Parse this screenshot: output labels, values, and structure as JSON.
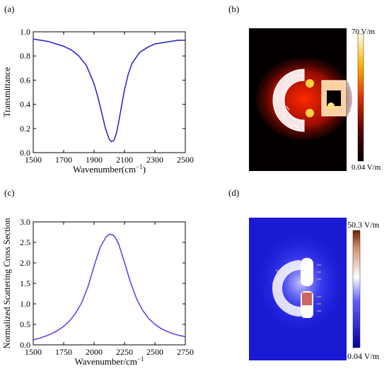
{
  "panels": {
    "a": {
      "label": "(a)"
    },
    "b": {
      "label": "(b)",
      "colorbar_max": "70 V/m",
      "colorbar_min": "0.04 V/m"
    },
    "c": {
      "label": "(c)"
    },
    "d": {
      "label": "(d)",
      "colorbar_max": "50.3 V/m",
      "colorbar_min": "0.04 V/m"
    }
  },
  "chart_data": [
    {
      "id": "a",
      "type": "line",
      "xlabel": "Wavenumber(cm",
      "xlabel_sup": "−1",
      "xlabel_end": ")",
      "ylabel": "Transmittance",
      "xlim": [
        1500,
        2500
      ],
      "ylim": [
        0.0,
        1.0
      ],
      "xticks": [
        1500,
        1700,
        1900,
        2100,
        2300,
        2500
      ],
      "xtick_labels": [
        "1500",
        "1700",
        "1900",
        "2100",
        "2300",
        "2500"
      ],
      "yticks": [
        0.0,
        0.2,
        0.4,
        0.6,
        0.8,
        1.0
      ],
      "ytick_labels": [
        "0.0",
        "0.2",
        "0.4",
        "0.6",
        "0.8",
        "1.0"
      ],
      "color": "#1f1fcc",
      "series": [
        {
          "x": [
            1500,
            1550,
            1600,
            1650,
            1700,
            1750,
            1800,
            1850,
            1900,
            1925,
            1950,
            1975,
            2000,
            2015,
            2030,
            2045,
            2060,
            2080,
            2100,
            2125,
            2150,
            2200,
            2250,
            2300,
            2350,
            2400,
            2450,
            2500
          ],
          "values": [
            0.94,
            0.93,
            0.92,
            0.9,
            0.88,
            0.85,
            0.8,
            0.72,
            0.57,
            0.46,
            0.33,
            0.2,
            0.11,
            0.09,
            0.1,
            0.15,
            0.24,
            0.38,
            0.52,
            0.65,
            0.74,
            0.83,
            0.87,
            0.9,
            0.91,
            0.92,
            0.93,
            0.93
          ]
        }
      ]
    },
    {
      "id": "c",
      "type": "line",
      "xlabel": "Wavenumber/cm",
      "xlabel_sup": "−1",
      "xlabel_end": "",
      "ylabel": "Normalized Scattering Cross Section",
      "xlim": [
        1500,
        2750
      ],
      "ylim": [
        0.0,
        3.0
      ],
      "xticks": [
        1500,
        1750,
        2000,
        2250,
        2500,
        2750
      ],
      "xtick_labels": [
        "1500",
        "1750",
        "2000",
        "2250",
        "2500",
        "2750"
      ],
      "yticks": [
        0.0,
        0.5,
        1.0,
        1.5,
        2.0,
        2.5,
        3.0
      ],
      "ytick_labels": [
        "0.0",
        "0.5",
        "1.0",
        "1.5",
        "2.0",
        "2.5",
        "3.0"
      ],
      "color": "#6633ee",
      "series": [
        {
          "x": [
            1500,
            1550,
            1600,
            1650,
            1700,
            1750,
            1800,
            1850,
            1900,
            1950,
            2000,
            2050,
            2100,
            2130,
            2150,
            2170,
            2200,
            2250,
            2300,
            2350,
            2400,
            2450,
            2500,
            2550,
            2600,
            2650,
            2700,
            2750
          ],
          "values": [
            0.12,
            0.16,
            0.21,
            0.27,
            0.35,
            0.45,
            0.59,
            0.78,
            1.04,
            1.42,
            1.92,
            2.38,
            2.64,
            2.7,
            2.69,
            2.64,
            2.48,
            2.01,
            1.52,
            1.12,
            0.84,
            0.64,
            0.5,
            0.4,
            0.33,
            0.27,
            0.23,
            0.2
          ]
        }
      ]
    }
  ]
}
